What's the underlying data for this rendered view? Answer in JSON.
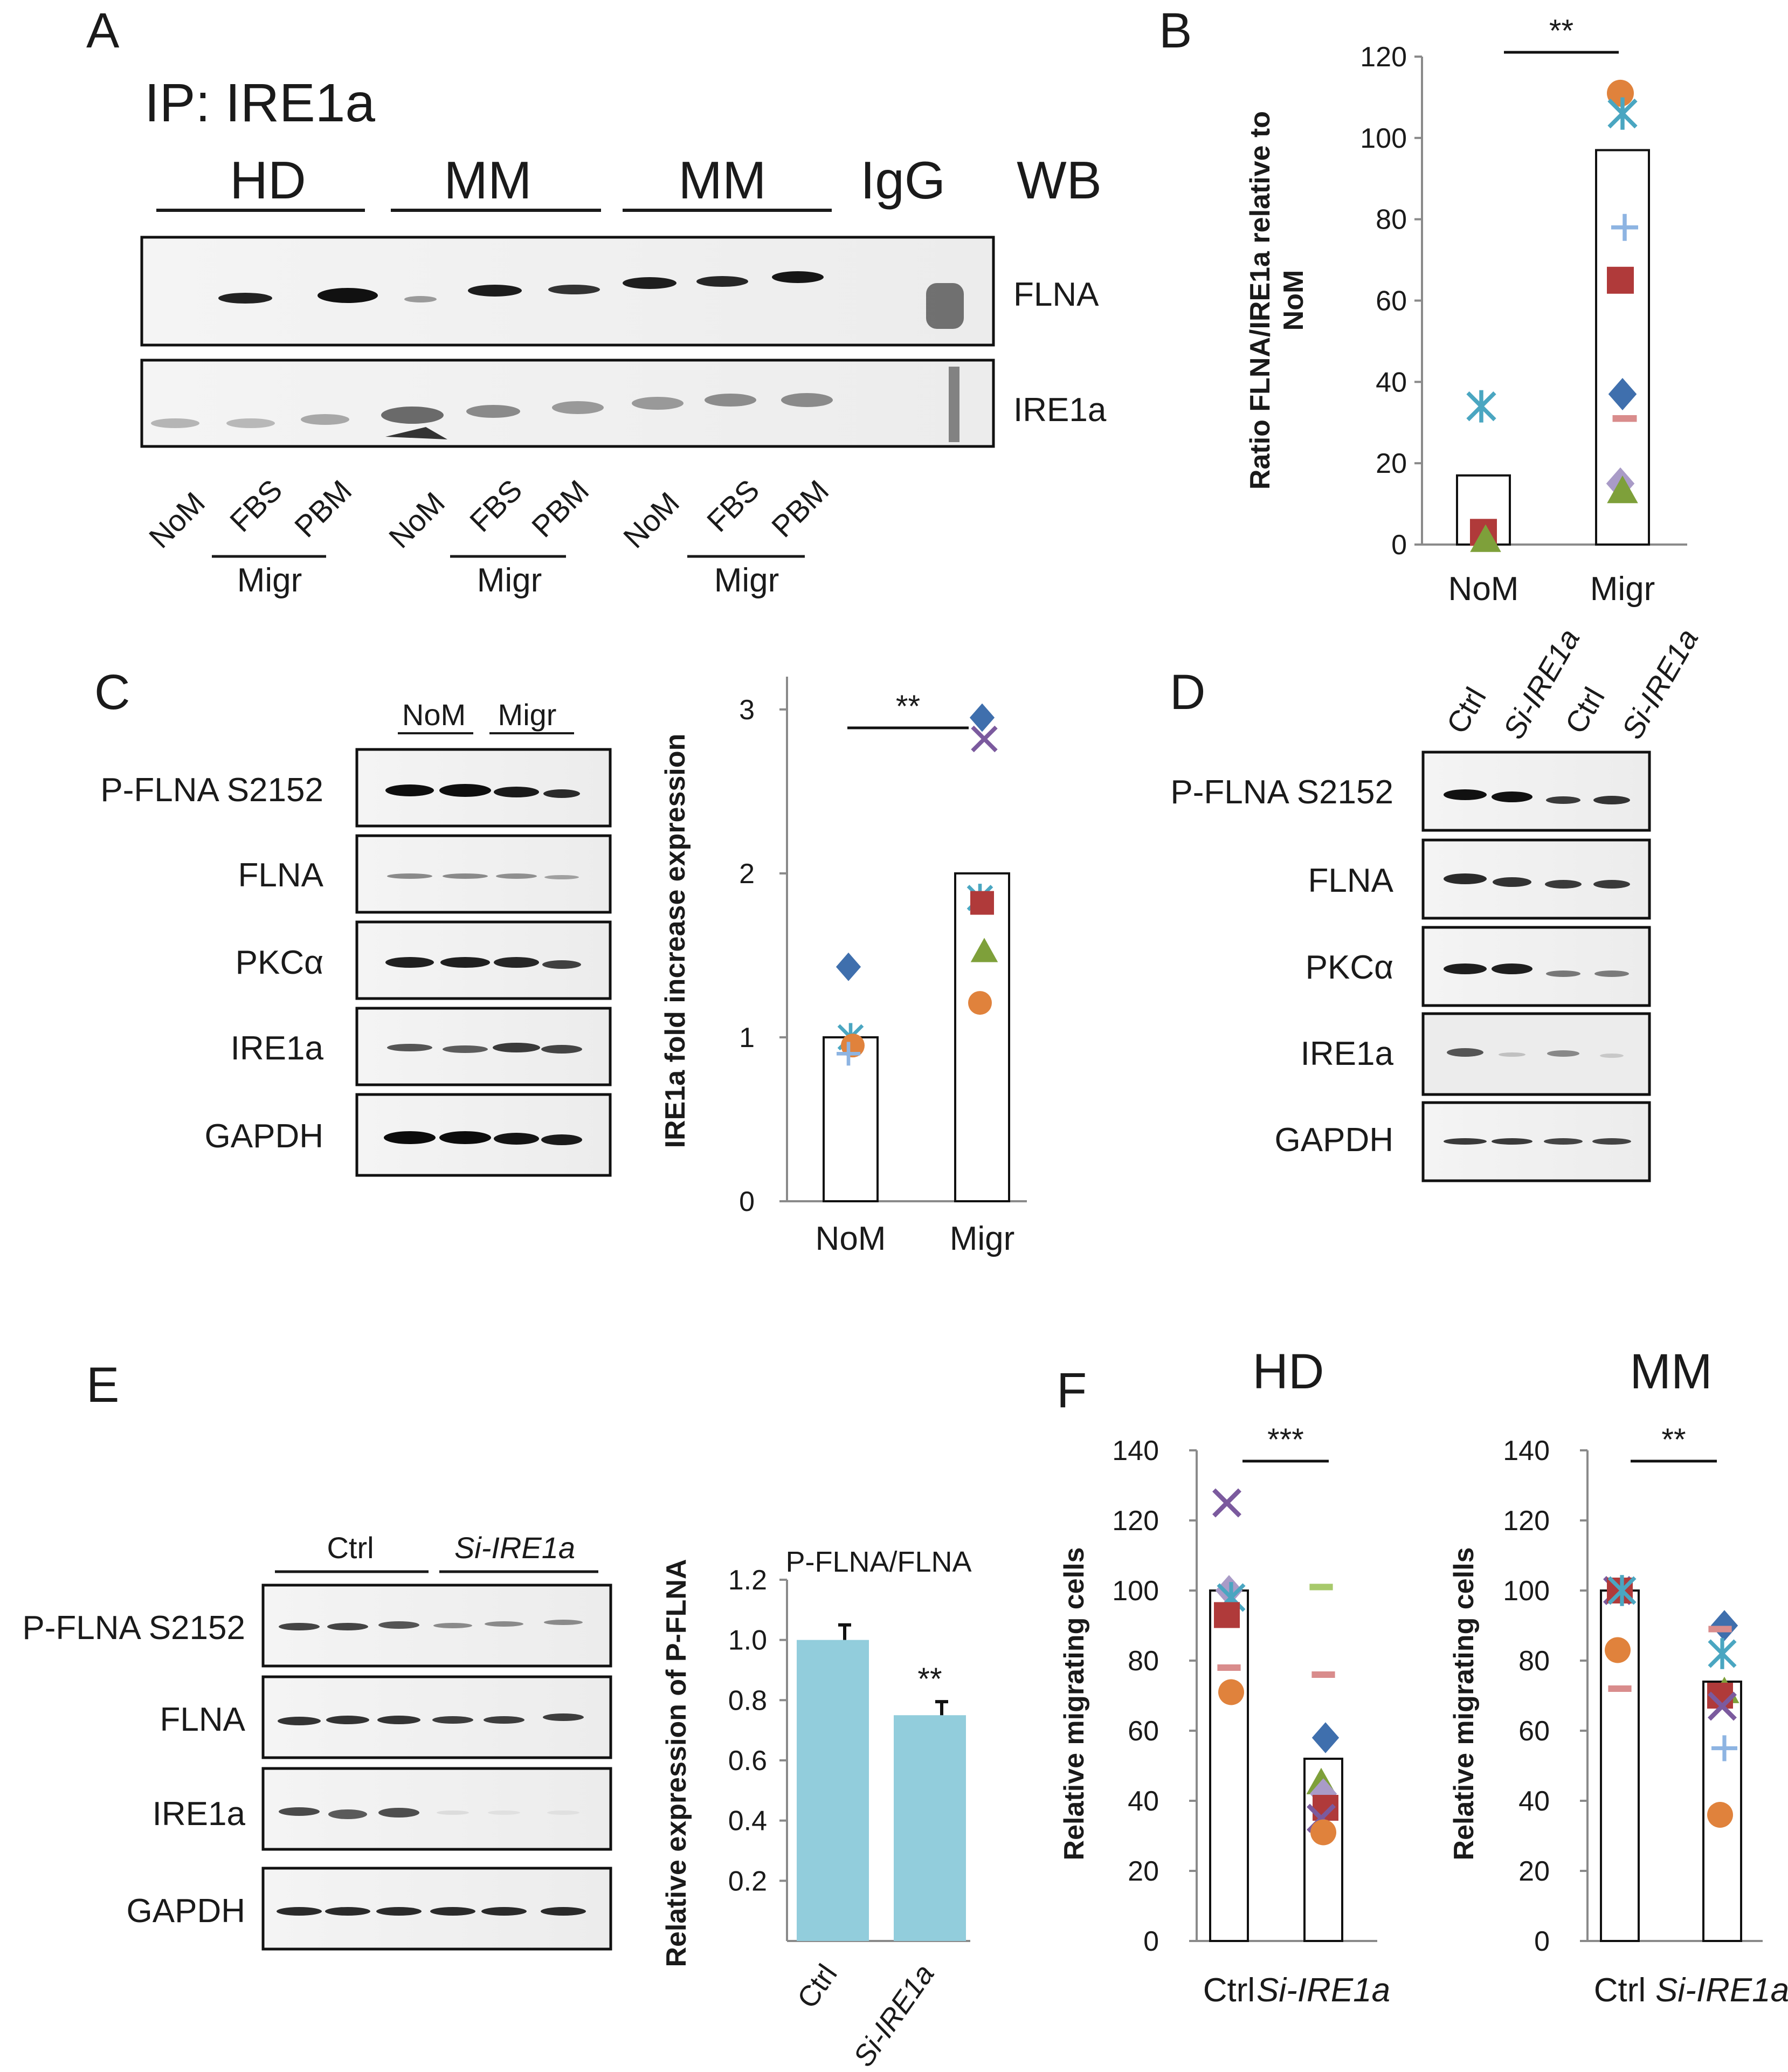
{
  "colors": {
    "blue": "#3f6fad",
    "red": "#b03a3a",
    "green": "#7ea03a",
    "purple": "#7b5a9e",
    "cyan": "#4aa6c1",
    "orange": "#e0823c",
    "lightblue": "#8db4e2",
    "pink": "#d98c8c",
    "lavender": "#a99bc7",
    "lightgreen": "#a7c96b",
    "bar_blue": "#92cddc"
  },
  "panels": {
    "A": {
      "letter": "A",
      "ip_label": "IP: IRE1a",
      "groups": [
        "HD",
        "MM",
        "MM",
        "IgG"
      ],
      "wb_label": "WB",
      "blots": [
        "FLNA",
        "IRE1a"
      ],
      "lanes": [
        "NoM",
        "FBS",
        "PBM",
        "NoM",
        "FBS",
        "PBM",
        "NoM",
        "FBS",
        "PBM"
      ],
      "migr_label": "Migr"
    },
    "C": {
      "letter": "C",
      "groups": [
        "NoM",
        "Migr"
      ],
      "blots": [
        "P-FLNA S2152",
        "FLNA",
        "PKCα",
        "IRE1a",
        "GAPDH"
      ]
    },
    "D": {
      "letter": "D",
      "lanes": [
        "Ctrl",
        "Si-IRE1a",
        "Ctrl",
        "Si-IRE1a"
      ],
      "blots": [
        "P-FLNA S2152",
        "FLNA",
        "PKCα",
        "IRE1a",
        "GAPDH"
      ]
    },
    "E": {
      "letter": "E",
      "groups": [
        "Ctrl",
        "Si-IRE1a"
      ],
      "blots": [
        "P-FLNA S2152",
        "FLNA",
        "IRE1a",
        "GAPDH"
      ]
    },
    "F": {
      "letter": "F"
    }
  },
  "chart_data": [
    {
      "id": "B",
      "letter": "B",
      "type": "scatter",
      "title": "",
      "ylabel": "Ratio FLNA/IRE1a relative to NoM",
      "ylim": [
        0,
        120
      ],
      "yticks": [
        "0",
        "20",
        "40",
        "60",
        "80",
        "100",
        "120"
      ],
      "categories": [
        "NoM",
        "Migr"
      ],
      "bars": [
        17,
        97
      ],
      "significance": "**",
      "points": [
        {
          "cat": 0,
          "value": 34,
          "marker": "star",
          "color": "cyan"
        },
        {
          "cat": 0,
          "value": 3,
          "marker": "square",
          "color": "red"
        },
        {
          "cat": 0,
          "value": 1,
          "marker": "triangle",
          "color": "green"
        },
        {
          "cat": 1,
          "value": 111,
          "marker": "circle",
          "color": "orange"
        },
        {
          "cat": 1,
          "value": 106,
          "marker": "star",
          "color": "cyan"
        },
        {
          "cat": 1,
          "value": 78,
          "marker": "plus",
          "color": "lightblue"
        },
        {
          "cat": 1,
          "value": 65,
          "marker": "square",
          "color": "red"
        },
        {
          "cat": 1,
          "value": 37,
          "marker": "diamond",
          "color": "blue"
        },
        {
          "cat": 1,
          "value": 31,
          "marker": "dash",
          "color": "pink"
        },
        {
          "cat": 1,
          "value": 15,
          "marker": "diamond",
          "color": "lavender"
        },
        {
          "cat": 1,
          "value": 13,
          "marker": "triangle",
          "color": "green"
        }
      ]
    },
    {
      "id": "C",
      "type": "scatter",
      "title": "",
      "ylabel": "IRE1a fold increase expression",
      "ylim": [
        0,
        3.2
      ],
      "yticks": [
        "0",
        "1",
        "2",
        "3"
      ],
      "categories": [
        "NoM",
        "Migr"
      ],
      "bars": [
        1.0,
        2.0
      ],
      "significance": "**",
      "points": [
        {
          "cat": 0,
          "value": 1.43,
          "marker": "diamond",
          "color": "blue"
        },
        {
          "cat": 0,
          "value": 1.0,
          "marker": "star",
          "color": "cyan"
        },
        {
          "cat": 0,
          "value": 0.95,
          "marker": "circle",
          "color": "orange"
        },
        {
          "cat": 0,
          "value": 0.9,
          "marker": "plus",
          "color": "lightblue"
        },
        {
          "cat": 1,
          "value": 2.95,
          "marker": "diamond",
          "color": "blue"
        },
        {
          "cat": 1,
          "value": 2.82,
          "marker": "x",
          "color": "purple"
        },
        {
          "cat": 1,
          "value": 1.85,
          "marker": "star",
          "color": "cyan"
        },
        {
          "cat": 1,
          "value": 1.82,
          "marker": "square",
          "color": "red"
        },
        {
          "cat": 1,
          "value": 1.52,
          "marker": "triangle",
          "color": "green"
        },
        {
          "cat": 1,
          "value": 1.21,
          "marker": "circle",
          "color": "orange"
        }
      ]
    },
    {
      "id": "E",
      "type": "bar",
      "title": "P-FLNA/FLNA",
      "ylabel": "Relative expression of P-FLNA",
      "ylim": [
        0,
        1.2
      ],
      "yticks": [
        "0.2",
        "0.4",
        "0.6",
        "0.8",
        "1.0",
        "1.2"
      ],
      "categories": [
        "Ctrl",
        "Si-IRE1a"
      ],
      "values": [
        1.0,
        0.75
      ],
      "errors": [
        0.05,
        0.045
      ],
      "significance": "**"
    },
    {
      "id": "F-HD",
      "type": "scatter",
      "title": "HD",
      "ylabel": "Relative migrating cells",
      "ylim": [
        0,
        140
      ],
      "yticks": [
        "0",
        "20",
        "40",
        "60",
        "80",
        "100",
        "120",
        "140"
      ],
      "categories": [
        "Ctrl",
        "Si-IRE1a"
      ],
      "bars": [
        100,
        52
      ],
      "significance": "***",
      "points": [
        {
          "cat": 0,
          "value": 125,
          "marker": "x",
          "color": "purple"
        },
        {
          "cat": 0,
          "value": 100,
          "marker": "diamond",
          "color": "lavender"
        },
        {
          "cat": 0,
          "value": 98,
          "marker": "star",
          "color": "cyan"
        },
        {
          "cat": 0,
          "value": 93,
          "marker": "square",
          "color": "red"
        },
        {
          "cat": 0,
          "value": 78,
          "marker": "dash",
          "color": "pink"
        },
        {
          "cat": 0,
          "value": 71,
          "marker": "circle",
          "color": "orange"
        },
        {
          "cat": 1,
          "value": 101,
          "marker": "dash",
          "color": "lightgreen"
        },
        {
          "cat": 1,
          "value": 76,
          "marker": "dash",
          "color": "pink"
        },
        {
          "cat": 1,
          "value": 58,
          "marker": "diamond",
          "color": "blue"
        },
        {
          "cat": 1,
          "value": 45,
          "marker": "triangle",
          "color": "green"
        },
        {
          "cat": 1,
          "value": 42,
          "marker": "diamond",
          "color": "lavender"
        },
        {
          "cat": 1,
          "value": 38,
          "marker": "square",
          "color": "red"
        },
        {
          "cat": 1,
          "value": 35,
          "marker": "x",
          "color": "purple"
        },
        {
          "cat": 1,
          "value": 31,
          "marker": "circle",
          "color": "orange"
        }
      ]
    },
    {
      "id": "F-MM",
      "type": "scatter",
      "title": "MM",
      "ylabel": "Relative migrating cells",
      "ylim": [
        0,
        140
      ],
      "yticks": [
        "0",
        "20",
        "40",
        "60",
        "80",
        "100",
        "120",
        "140"
      ],
      "categories": [
        "Ctrl",
        "Si-IRE1a"
      ],
      "bars": [
        100,
        74
      ],
      "significance": "**",
      "points": [
        {
          "cat": 0,
          "value": 100,
          "marker": "x",
          "color": "purple"
        },
        {
          "cat": 0,
          "value": 100,
          "marker": "square",
          "color": "red"
        },
        {
          "cat": 0,
          "value": 100,
          "marker": "star",
          "color": "cyan"
        },
        {
          "cat": 0,
          "value": 83,
          "marker": "circle",
          "color": "orange"
        },
        {
          "cat": 0,
          "value": 72,
          "marker": "dash",
          "color": "pink"
        },
        {
          "cat": 1,
          "value": 90,
          "marker": "diamond",
          "color": "blue"
        },
        {
          "cat": 1,
          "value": 89,
          "marker": "dash",
          "color": "pink"
        },
        {
          "cat": 1,
          "value": 82,
          "marker": "star",
          "color": "cyan"
        },
        {
          "cat": 1,
          "value": 71,
          "marker": "triangle",
          "color": "green"
        },
        {
          "cat": 1,
          "value": 70,
          "marker": "square",
          "color": "red"
        },
        {
          "cat": 1,
          "value": 67,
          "marker": "x",
          "color": "purple"
        },
        {
          "cat": 1,
          "value": 55,
          "marker": "plus",
          "color": "lightblue"
        },
        {
          "cat": 1,
          "value": 36,
          "marker": "circle",
          "color": "orange"
        }
      ]
    }
  ]
}
